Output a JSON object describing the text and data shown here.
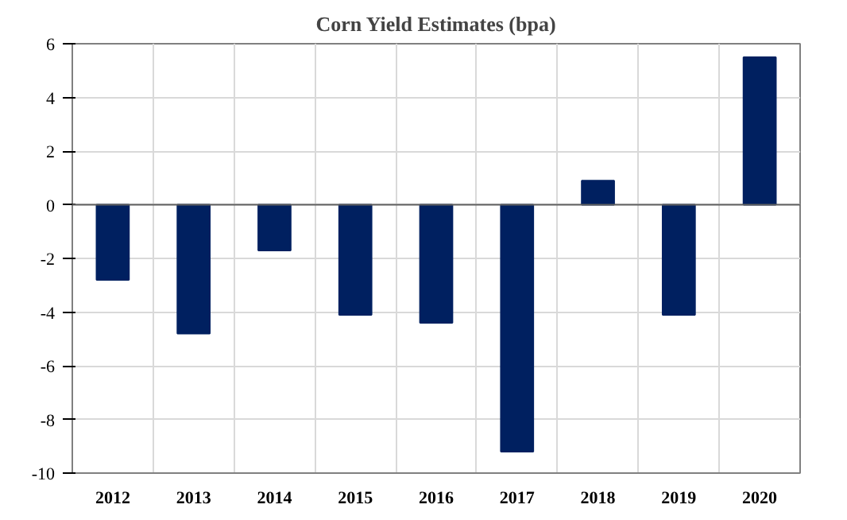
{
  "chart_data": {
    "type": "bar",
    "title": "Corn Yield Estimates (bpa)",
    "categories": [
      "2012",
      "2013",
      "2014",
      "2015",
      "2016",
      "2017",
      "2018",
      "2019",
      "2020"
    ],
    "values": [
      -2.8,
      -4.8,
      -1.7,
      -4.1,
      -4.4,
      -9.2,
      0.9,
      -4.1,
      5.5
    ],
    "color": "#002060",
    "ylim": [
      -10,
      6
    ],
    "yticks": [
      -10,
      -8,
      -6,
      -4,
      -2,
      0,
      2,
      4,
      6
    ],
    "grid": true
  }
}
